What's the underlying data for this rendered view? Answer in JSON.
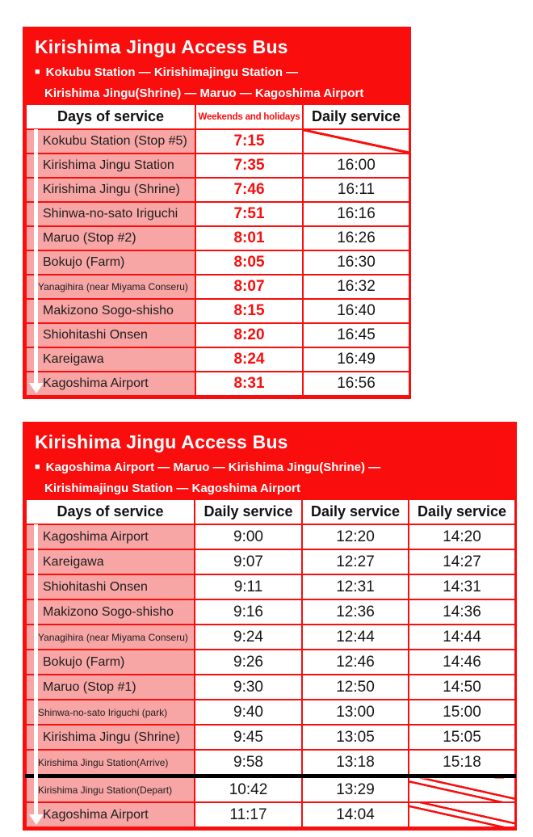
{
  "colors": {
    "red": "#f90d0d",
    "pink": "#f8a5a5",
    "text_dark": "#1d1d1d",
    "white": "#ffffff",
    "separator_black": "#000000"
  },
  "table1": {
    "title": "Kirishima Jingu Access Bus",
    "bullet": "■",
    "route_line1": "Kokubu Station —  Kirishimajingu Station —",
    "route_line2": "Kirishima Jingu(Shrine) — Maruo — Kagoshima Airport",
    "columns": [
      "Days of service",
      "Weekends and holidays",
      "Daily service"
    ],
    "rows": [
      {
        "station": "Kokubu Station (Stop #5)",
        "weekend": "7:15",
        "daily": null
      },
      {
        "station": "Kirishima Jingu Station",
        "weekend": "7:35",
        "daily": "16:00"
      },
      {
        "station": "Kirishima Jingu (Shrine)",
        "weekend": "7:46",
        "daily": "16:11"
      },
      {
        "station": "Shinwa-no-sato Iriguchi",
        "weekend": "7:51",
        "daily": "16:16"
      },
      {
        "station": "Maruo (Stop #2)",
        "weekend": "8:01",
        "daily": "16:26"
      },
      {
        "station": "Bokujo (Farm)",
        "weekend": "8:05",
        "daily": "16:30"
      },
      {
        "station": "Yanagihira (near Miyama Conseru)",
        "weekend": "8:07",
        "daily": "16:32",
        "small": true
      },
      {
        "station": "Makizono Sogo-shisho",
        "weekend": "8:15",
        "daily": "16:40"
      },
      {
        "station": "Shiohitashi Onsen",
        "weekend": "8:20",
        "daily": "16:45"
      },
      {
        "station": "Kareigawa",
        "weekend": "8:24",
        "daily": "16:49"
      },
      {
        "station": "Kagoshima Airport",
        "weekend": "8:31",
        "daily": "16:56"
      }
    ]
  },
  "table2": {
    "title": "Kirishima Jingu Access Bus",
    "bullet": "■",
    "route_line1": "Kagoshima Airport — Maruo — Kirishima Jingu(Shrine) —",
    "route_line2": "Kirishimajingu Station — Kagoshima Airport",
    "columns": [
      "Days of service",
      "Daily service",
      "Daily service",
      "Daily service"
    ],
    "rows": [
      {
        "station": "Kagoshima Airport",
        "times": [
          "9:00",
          "12:20",
          "14:20"
        ]
      },
      {
        "station": "Kareigawa",
        "times": [
          "9:07",
          "12:27",
          "14:27"
        ]
      },
      {
        "station": "Shiohitashi Onsen",
        "times": [
          "9:11",
          "12:31",
          "14:31"
        ]
      },
      {
        "station": "Makizono Sogo-shisho",
        "times": [
          "9:16",
          "12:36",
          "14:36"
        ]
      },
      {
        "station": "Yanagihira (near Miyama Conseru)",
        "times": [
          "9:24",
          "12:44",
          "14:44"
        ],
        "small": true
      },
      {
        "station": "Bokujo (Farm)",
        "times": [
          "9:26",
          "12:46",
          "14:46"
        ]
      },
      {
        "station": "Maruo (Stop #1)",
        "times": [
          "9:30",
          "12:50",
          "14:50"
        ]
      },
      {
        "station": "Shinwa-no-sato Iriguchi (park)",
        "times": [
          "9:40",
          "13:00",
          "15:00"
        ],
        "small": true
      },
      {
        "station": "Kirishima Jingu (Shrine)",
        "times": [
          "9:45",
          "13:05",
          "15:05"
        ]
      },
      {
        "station": "Kirishima Jingu Station(Arrive)",
        "times": [
          "9:58",
          "13:18",
          "15:18"
        ],
        "small": true
      },
      {
        "station": "Kirishima Jingu Station(Depart)",
        "times": [
          "10:42",
          "13:29",
          null
        ],
        "small": true
      },
      {
        "station": "Kagoshima Airport",
        "times": [
          "11:17",
          "14:04",
          null
        ]
      }
    ]
  }
}
